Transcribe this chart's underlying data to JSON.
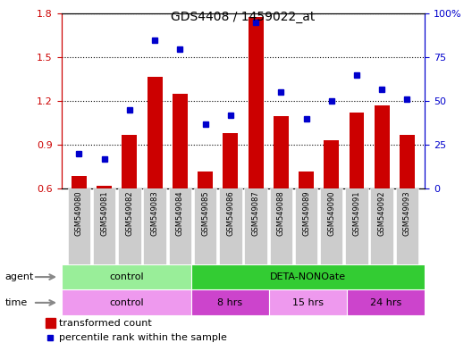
{
  "title": "GDS4408 / 1459022_at",
  "samples": [
    "GSM549080",
    "GSM549081",
    "GSM549082",
    "GSM549083",
    "GSM549084",
    "GSM549085",
    "GSM549086",
    "GSM549087",
    "GSM549088",
    "GSM549089",
    "GSM549090",
    "GSM549091",
    "GSM549092",
    "GSM549093"
  ],
  "transformed_count": [
    0.69,
    0.62,
    0.97,
    1.37,
    1.25,
    0.72,
    0.98,
    1.78,
    1.1,
    0.72,
    0.93,
    1.12,
    1.17,
    0.97
  ],
  "percentile_rank": [
    20,
    17,
    45,
    85,
    80,
    37,
    42,
    95,
    55,
    40,
    50,
    65,
    57,
    51
  ],
  "ylim_left": [
    0.6,
    1.8
  ],
  "ylim_right": [
    0,
    100
  ],
  "yticks_left": [
    0.6,
    0.9,
    1.2,
    1.5,
    1.8
  ],
  "yticks_right": [
    0,
    25,
    50,
    75,
    100
  ],
  "ytick_labels_right": [
    "0",
    "25",
    "50",
    "75",
    "100%"
  ],
  "bar_color": "#cc0000",
  "dot_color": "#0000cc",
  "agent_groups": [
    {
      "label": "control",
      "start": 0,
      "end": 5,
      "color": "#99ee99"
    },
    {
      "label": "DETA-NONOate",
      "start": 5,
      "end": 14,
      "color": "#33cc33"
    }
  ],
  "time_groups": [
    {
      "label": "control",
      "start": 0,
      "end": 5,
      "color": "#ee99ee"
    },
    {
      "label": "8 hrs",
      "start": 5,
      "end": 8,
      "color": "#cc44cc"
    },
    {
      "label": "15 hrs",
      "start": 8,
      "end": 11,
      "color": "#ee99ee"
    },
    {
      "label": "24 hrs",
      "start": 11,
      "end": 14,
      "color": "#cc44cc"
    }
  ],
  "legend_bar_label": "transformed count",
  "legend_dot_label": "percentile rank within the sample",
  "xlabel_agent": "agent",
  "xlabel_time": "time",
  "tick_color_left": "#cc0000",
  "tick_color_right": "#0000cc",
  "bar_width": 0.6,
  "tick_bg_color": "#cccccc",
  "figsize": [
    5.28,
    3.84
  ],
  "dpi": 100
}
